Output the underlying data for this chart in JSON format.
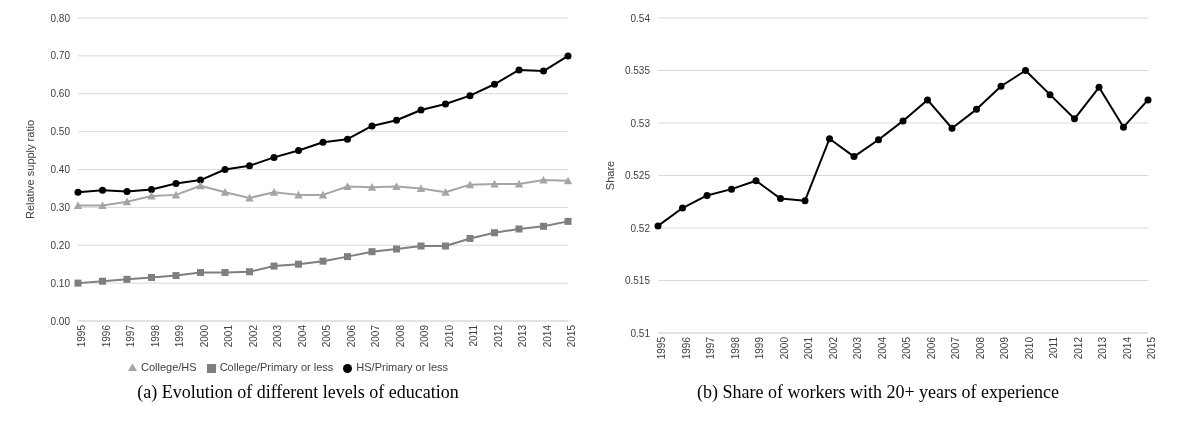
{
  "chart_data": [
    {
      "type": "line",
      "ylabel": "Relative supply ratio",
      "categories": [
        "1995",
        "1996",
        "1997",
        "1998",
        "1999",
        "2000",
        "2001",
        "2002",
        "2003",
        "2004",
        "2005",
        "2006",
        "2007",
        "2008",
        "2009",
        "2010",
        "2011",
        "2012",
        "2013",
        "2014",
        "2015"
      ],
      "series": [
        {
          "name": "College/Primary or less",
          "color": "#7f7f7f",
          "marker": "square",
          "values": [
            0.1,
            0.105,
            0.11,
            0.115,
            0.12,
            0.128,
            0.128,
            0.13,
            0.145,
            0.15,
            0.158,
            0.17,
            0.183,
            0.19,
            0.198,
            0.198,
            0.218,
            0.233,
            0.243,
            0.25,
            0.263
          ]
        },
        {
          "name": "HS/Primary or less",
          "color": "#000000",
          "marker": "circle",
          "values": [
            0.34,
            0.345,
            0.342,
            0.347,
            0.363,
            0.372,
            0.4,
            0.41,
            0.432,
            0.45,
            0.472,
            0.48,
            0.515,
            0.53,
            0.557,
            0.573,
            0.595,
            0.625,
            0.663,
            0.66,
            0.7
          ]
        },
        {
          "name": "College/HS",
          "color": "#a5a5a5",
          "marker": "triangle",
          "values": [
            0.305,
            0.305,
            0.315,
            0.33,
            0.333,
            0.357,
            0.34,
            0.325,
            0.34,
            0.333,
            0.333,
            0.355,
            0.353,
            0.355,
            0.35,
            0.34,
            0.36,
            0.362,
            0.362,
            0.372,
            0.37
          ]
        }
      ],
      "ylim": [
        0,
        0.8
      ],
      "yticks": [
        {
          "value": 0,
          "label": "0.00"
        },
        {
          "value": 0.1,
          "label": "0.10"
        },
        {
          "value": 0.2,
          "label": "0.20"
        },
        {
          "value": 0.3,
          "label": "0.30"
        },
        {
          "value": 0.4,
          "label": "0.40"
        },
        {
          "value": 0.5,
          "label": "0.50"
        },
        {
          "value": 0.6,
          "label": "0.60"
        },
        {
          "value": 0.7,
          "label": "0.70"
        },
        {
          "value": 0.8,
          "label": "0.80"
        }
      ],
      "grid": "y",
      "legend": "bottom",
      "line_style": "solid",
      "annotations": [
        "(a) Evolution of different levels of education"
      ]
    },
    {
      "type": "line",
      "ylabel": "Share",
      "categories": [
        "1995",
        "1996",
        "1997",
        "1998",
        "1999",
        "2000",
        "2001",
        "2002",
        "2003",
        "2004",
        "2005",
        "2006",
        "2007",
        "2008",
        "2009",
        "2010",
        "2011",
        "2012",
        "2013",
        "2014",
        "2015"
      ],
      "series": [
        {
          "color": "#000000",
          "values": [
            0.5202,
            0.5219,
            0.5231,
            0.5237,
            0.5245,
            0.5228,
            0.5226,
            0.5285,
            0.5268,
            0.5284,
            0.5302,
            0.5322,
            0.5295,
            0.5313,
            0.5335,
            0.535,
            0.5327,
            0.5304,
            0.5334,
            0.5296,
            0.5322
          ]
        }
      ],
      "ylim": [
        0.51,
        0.54
      ],
      "yticks": [
        0.51,
        0.515,
        0.52,
        0.525,
        0.53,
        0.535,
        0.54
      ],
      "grid": "y",
      "marker": "circle",
      "line_style": "solid",
      "annotations": [
        "(b) Share of workers with 20+ years of experience"
      ]
    }
  ]
}
